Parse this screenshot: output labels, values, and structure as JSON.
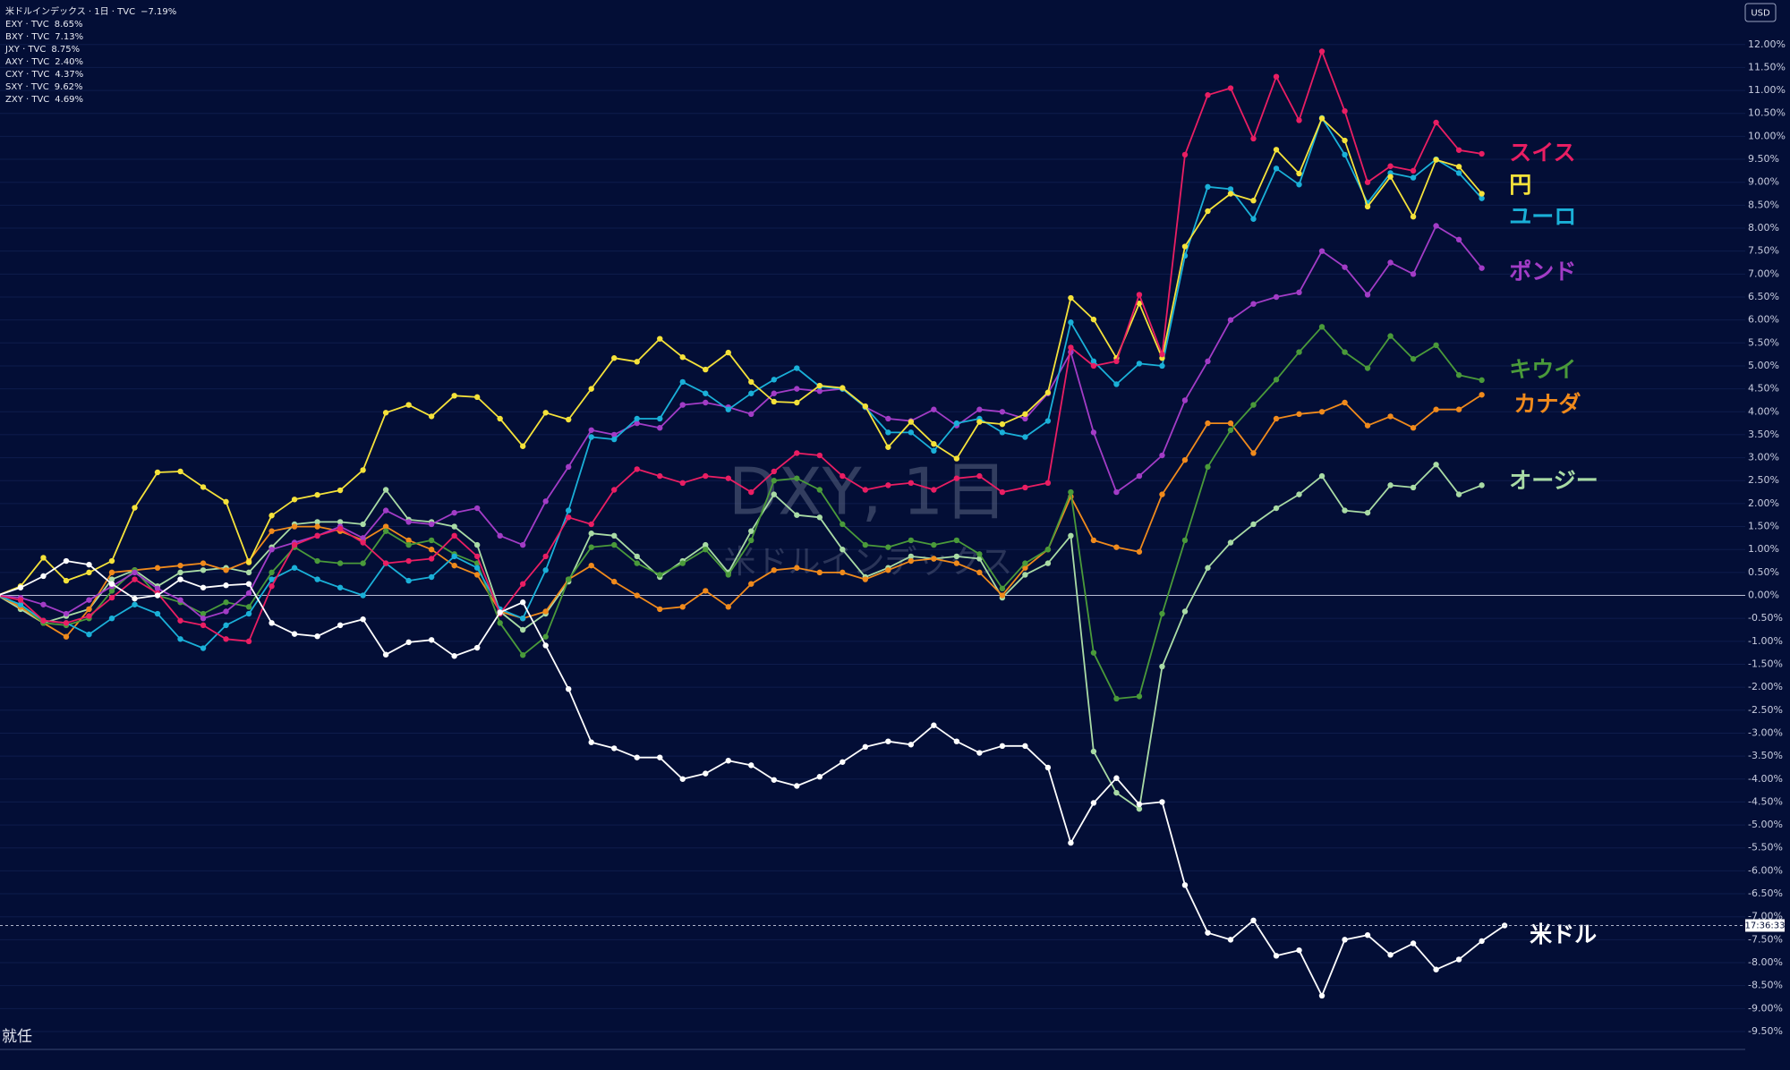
{
  "chart_data": {
    "type": "line",
    "title": "DXY, 1日",
    "subtitle": "米ドルインデックス",
    "currency": "USD",
    "countdown": "17:36:33",
    "annotation": "就任",
    "ylim": [
      -9.89,
      12.97
    ],
    "yticks": [
      {
        "value": 12,
        "label": "12.00%"
      },
      {
        "value": 11.5,
        "label": "11.50%"
      },
      {
        "value": 11,
        "label": "11.00%"
      },
      {
        "value": 10.5,
        "label": "10.50%"
      },
      {
        "value": 10,
        "label": "10.00%"
      },
      {
        "value": 9.5,
        "label": "9.50%"
      },
      {
        "value": 9,
        "label": "9.00%"
      },
      {
        "value": 8.5,
        "label": "8.50%"
      },
      {
        "value": 8,
        "label": "8.00%"
      },
      {
        "value": 7.5,
        "label": "7.50%"
      },
      {
        "value": 7,
        "label": "7.00%"
      },
      {
        "value": 6.5,
        "label": "6.50%"
      },
      {
        "value": 6,
        "label": "6.00%"
      },
      {
        "value": 5.5,
        "label": "5.50%"
      },
      {
        "value": 5,
        "label": "5.00%"
      },
      {
        "value": 4.5,
        "label": "4.50%"
      },
      {
        "value": 4,
        "label": "4.00%"
      },
      {
        "value": 3.5,
        "label": "3.50%"
      },
      {
        "value": 3,
        "label": "3.00%"
      },
      {
        "value": 2.5,
        "label": "2.50%"
      },
      {
        "value": 2,
        "label": "2.00%"
      },
      {
        "value": 1.5,
        "label": "1.50%"
      },
      {
        "value": 1,
        "label": "1.00%"
      },
      {
        "value": 0.5,
        "label": "0.50%"
      },
      {
        "value": 0,
        "label": "0.00%"
      },
      {
        "value": -0.5,
        "label": "-0.50%"
      },
      {
        "value": -1,
        "label": "-1.00%"
      },
      {
        "value": -1.5,
        "label": "-1.50%"
      },
      {
        "value": -2,
        "label": "-2.00%"
      },
      {
        "value": -2.5,
        "label": "-2.50%"
      },
      {
        "value": -3,
        "label": "-3.00%"
      },
      {
        "value": -3.5,
        "label": "-3.50%"
      },
      {
        "value": -4,
        "label": "-4.00%"
      },
      {
        "value": -4.5,
        "label": "-4.50%"
      },
      {
        "value": -5,
        "label": "-5.00%"
      },
      {
        "value": -5.5,
        "label": "-5.50%"
      },
      {
        "value": -6,
        "label": "-6.00%"
      },
      {
        "value": -6.5,
        "label": "-6.50%"
      },
      {
        "value": -7,
        "label": "-7.00%"
      },
      {
        "value": -7.5,
        "label": "-7.50%"
      },
      {
        "value": -8,
        "label": "-8.00%"
      },
      {
        "value": -8.5,
        "label": "-8.50%"
      },
      {
        "value": -9,
        "label": "-9.00%"
      },
      {
        "value": -9.5,
        "label": "-9.50%"
      }
    ],
    "grid": true,
    "series": [
      {
        "name": "米ドルインデックス · 1日 · TVC",
        "change": "−7.19%",
        "label": "米ドル",
        "color": "#ffffff",
        "values": [
          0,
          0.17,
          0.42,
          0.75,
          0.67,
          0.25,
          -0.07,
          0,
          0.35,
          0.17,
          0.22,
          0.25,
          -0.6,
          -0.84,
          -0.89,
          -0.65,
          -0.52,
          -1.29,
          -1.02,
          -0.97,
          -1.32,
          -1.14,
          -0.37,
          -0.15,
          -1.09,
          -2.04,
          -3.2,
          -3.33,
          -3.53,
          -3.53,
          -4.0,
          -3.88,
          -3.6,
          -3.7,
          -4.02,
          -4.15,
          -3.95,
          -3.63,
          -3.3,
          -3.18,
          -3.25,
          -2.83,
          -3.18,
          -3.43,
          -3.28,
          -3.28,
          -3.75,
          -5.39,
          -4.52,
          -3.98,
          -4.55,
          -4.5,
          -6.31,
          -7.35,
          -7.5,
          -7.08,
          -7.85,
          -7.73,
          -8.72,
          -7.5,
          -7.4,
          -7.83,
          -7.58,
          -8.15,
          -7.93,
          -7.53,
          -7.19
        ]
      },
      {
        "name": "EXY · TVC",
        "change": "8.65%",
        "label": "ユーロ",
        "color": "#1ab0d8",
        "values": [
          0,
          -0.2,
          -0.55,
          -0.6,
          -0.85,
          -0.5,
          -0.2,
          -0.4,
          -0.95,
          -1.15,
          -0.65,
          -0.4,
          0.35,
          0.6,
          0.35,
          0.17,
          0.0,
          0.7,
          0.32,
          0.4,
          0.85,
          0.6,
          -0.3,
          -0.5,
          0.55,
          1.85,
          3.45,
          3.4,
          3.85,
          3.85,
          4.65,
          4.4,
          4.05,
          4.4,
          4.7,
          4.95,
          4.55,
          4.5,
          4.1,
          3.55,
          3.55,
          3.15,
          3.75,
          3.85,
          3.55,
          3.45,
          3.8,
          5.95,
          5.1,
          4.6,
          5.05,
          5.0,
          7.4,
          8.9,
          8.85,
          8.2,
          9.3,
          8.95,
          10.4,
          9.6,
          8.55,
          9.2,
          9.1,
          9.5,
          9.2,
          8.65
        ]
      },
      {
        "name": "BXY · TVC",
        "change": "7.13%",
        "label": "ポンド",
        "color": "#a23cc6",
        "values": [
          0,
          -0.05,
          -0.2,
          -0.4,
          -0.1,
          0.2,
          0.5,
          0.15,
          -0.1,
          -0.5,
          -0.35,
          0.05,
          1.0,
          1.15,
          1.3,
          1.5,
          1.25,
          1.85,
          1.6,
          1.55,
          1.8,
          1.9,
          1.3,
          1.1,
          2.05,
          2.8,
          3.6,
          3.5,
          3.75,
          3.65,
          4.15,
          4.2,
          4.1,
          3.95,
          4.4,
          4.5,
          4.45,
          4.5,
          4.1,
          3.85,
          3.8,
          4.05,
          3.7,
          4.05,
          4.0,
          3.85,
          4.4,
          5.3,
          3.55,
          2.25,
          2.6,
          3.05,
          4.25,
          5.1,
          6.0,
          6.35,
          6.5,
          6.6,
          7.5,
          7.15,
          6.55,
          7.25,
          7.0,
          8.05,
          7.75,
          7.13
        ]
      },
      {
        "name": "JXY · TVC",
        "change": "8.75%",
        "label": "円",
        "color": "#f5e23a",
        "values": [
          0,
          0.2,
          0.82,
          0.32,
          0.5,
          0.75,
          1.91,
          2.68,
          2.7,
          2.36,
          2.04,
          0.72,
          1.74,
          2.09,
          2.19,
          2.29,
          2.73,
          3.98,
          4.15,
          3.9,
          4.35,
          4.32,
          3.85,
          3.25,
          3.98,
          3.83,
          4.5,
          5.17,
          5.09,
          5.59,
          5.19,
          4.92,
          5.29,
          4.65,
          4.22,
          4.2,
          4.57,
          4.52,
          4.12,
          3.23,
          3.78,
          3.3,
          2.98,
          3.78,
          3.73,
          3.95,
          4.42,
          6.48,
          6.01,
          5.17,
          6.36,
          5.17,
          7.6,
          8.37,
          8.75,
          8.6,
          9.71,
          9.19,
          10.39,
          9.91,
          8.47,
          9.12,
          8.25,
          9.49,
          9.34,
          8.75
        ]
      },
      {
        "name": "AXY · TVC",
        "change": "2.40%",
        "label": "オージー",
        "color": "#a9dba5",
        "values": [
          0,
          -0.3,
          -0.6,
          -0.45,
          -0.3,
          0.35,
          0.55,
          0.2,
          0.5,
          0.55,
          0.6,
          0.5,
          1.05,
          1.55,
          1.6,
          1.6,
          1.55,
          2.3,
          1.65,
          1.6,
          1.5,
          1.1,
          -0.35,
          -0.75,
          -0.4,
          0.3,
          1.35,
          1.3,
          0.85,
          0.4,
          0.75,
          1.1,
          0.5,
          1.4,
          2.2,
          1.75,
          1.7,
          1.0,
          0.4,
          0.6,
          0.85,
          0.8,
          0.85,
          0.8,
          -0.05,
          0.45,
          0.7,
          1.3,
          -3.4,
          -4.3,
          -4.65,
          -1.55,
          -0.35,
          0.6,
          1.15,
          1.55,
          1.9,
          2.2,
          2.6,
          1.85,
          1.8,
          2.4,
          2.35,
          2.85,
          2.2,
          2.4
        ]
      },
      {
        "name": "CXY · TVC",
        "change": "4.37%",
        "label": "カナダ",
        "color": "#f08a1c",
        "values": [
          0,
          -0.25,
          -0.6,
          -0.9,
          -0.3,
          0.5,
          0.55,
          0.6,
          0.65,
          0.7,
          0.55,
          0.75,
          1.4,
          1.5,
          1.5,
          1.4,
          1.2,
          1.5,
          1.2,
          1.0,
          0.65,
          0.45,
          -0.35,
          -0.5,
          -0.35,
          0.35,
          0.65,
          0.3,
          0.0,
          -0.3,
          -0.25,
          0.1,
          -0.25,
          0.25,
          0.55,
          0.6,
          0.5,
          0.5,
          0.35,
          0.55,
          0.75,
          0.8,
          0.7,
          0.5,
          0.0,
          0.6,
          1.0,
          2.15,
          1.2,
          1.05,
          0.95,
          2.2,
          2.95,
          3.75,
          3.75,
          3.1,
          3.85,
          3.95,
          4.0,
          4.2,
          3.7,
          3.9,
          3.65,
          4.05,
          4.05,
          4.37
        ]
      },
      {
        "name": "SXY · TVC",
        "change": "9.62%",
        "label": "スイス",
        "color": "#e91e63",
        "values": [
          0,
          -0.1,
          -0.55,
          -0.6,
          -0.45,
          -0.05,
          0.35,
          0.05,
          -0.55,
          -0.65,
          -0.95,
          -1.0,
          0.2,
          1.1,
          1.3,
          1.45,
          1.15,
          0.7,
          0.75,
          0.8,
          1.3,
          0.85,
          -0.4,
          0.25,
          0.85,
          1.7,
          1.55,
          2.3,
          2.75,
          2.6,
          2.45,
          2.6,
          2.55,
          2.25,
          2.7,
          3.1,
          3.05,
          2.6,
          2.3,
          2.4,
          2.45,
          2.3,
          2.55,
          2.6,
          2.25,
          2.35,
          2.45,
          5.4,
          5.0,
          5.1,
          6.55,
          5.25,
          9.6,
          10.9,
          11.05,
          9.95,
          11.3,
          10.35,
          11.85,
          10.55,
          9.0,
          9.35,
          9.25,
          10.3,
          9.7,
          9.62
        ]
      },
      {
        "name": "ZXY · TVC",
        "change": "4.69%",
        "label": "キウイ",
        "color": "#4a9a3a",
        "values": [
          0,
          -0.2,
          -0.6,
          -0.65,
          -0.5,
          0.1,
          0.55,
          0.0,
          -0.15,
          -0.4,
          -0.15,
          -0.25,
          0.5,
          1.05,
          0.75,
          0.7,
          0.7,
          1.4,
          1.1,
          1.2,
          0.9,
          0.7,
          -0.6,
          -1.3,
          -0.9,
          0.35,
          1.05,
          1.1,
          0.7,
          0.45,
          0.7,
          1.0,
          0.45,
          1.2,
          2.5,
          2.55,
          2.3,
          1.55,
          1.1,
          1.05,
          1.2,
          1.1,
          1.2,
          0.9,
          0.15,
          0.7,
          1.0,
          2.25,
          -1.25,
          -2.25,
          -2.2,
          -0.4,
          1.2,
          2.8,
          3.6,
          4.15,
          4.7,
          5.3,
          5.85,
          5.3,
          4.95,
          5.65,
          5.15,
          5.45,
          4.8,
          4.69
        ]
      }
    ]
  }
}
